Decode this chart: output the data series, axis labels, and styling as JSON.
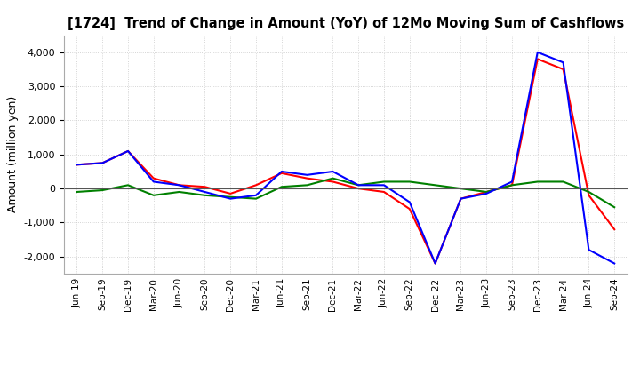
{
  "title": "[1724]  Trend of Change in Amount (YoY) of 12Mo Moving Sum of Cashflows",
  "ylabel": "Amount (million yen)",
  "ylim": [
    -2500,
    4500
  ],
  "yticks": [
    -2000,
    -1000,
    0,
    1000,
    2000,
    3000,
    4000
  ],
  "x_labels": [
    "Jun-19",
    "Sep-19",
    "Dec-19",
    "Mar-20",
    "Jun-20",
    "Sep-20",
    "Dec-20",
    "Mar-21",
    "Jun-21",
    "Sep-21",
    "Dec-21",
    "Mar-22",
    "Jun-22",
    "Sep-22",
    "Dec-22",
    "Mar-23",
    "Jun-23",
    "Sep-23",
    "Dec-23",
    "Mar-24",
    "Jun-24",
    "Sep-24"
  ],
  "operating": [
    700,
    750,
    1100,
    300,
    100,
    50,
    -150,
    100,
    450,
    300,
    200,
    0,
    -100,
    -600,
    -2200,
    -300,
    -100,
    100,
    3800,
    3500,
    -200,
    -1200
  ],
  "investing": [
    -100,
    -50,
    100,
    -200,
    -100,
    -200,
    -250,
    -300,
    50,
    100,
    300,
    100,
    200,
    200,
    100,
    0,
    -100,
    100,
    200,
    200,
    -100,
    -550
  ],
  "free": [
    700,
    750,
    1100,
    200,
    100,
    -100,
    -300,
    -200,
    500,
    400,
    500,
    100,
    100,
    -400,
    -2200,
    -300,
    -150,
    200,
    4000,
    3700,
    -1800,
    -2200
  ],
  "colors": {
    "operating": "#ff0000",
    "investing": "#008000",
    "free": "#0000ff"
  },
  "background_color": "#ffffff",
  "grid_color": "#c8c8c8"
}
